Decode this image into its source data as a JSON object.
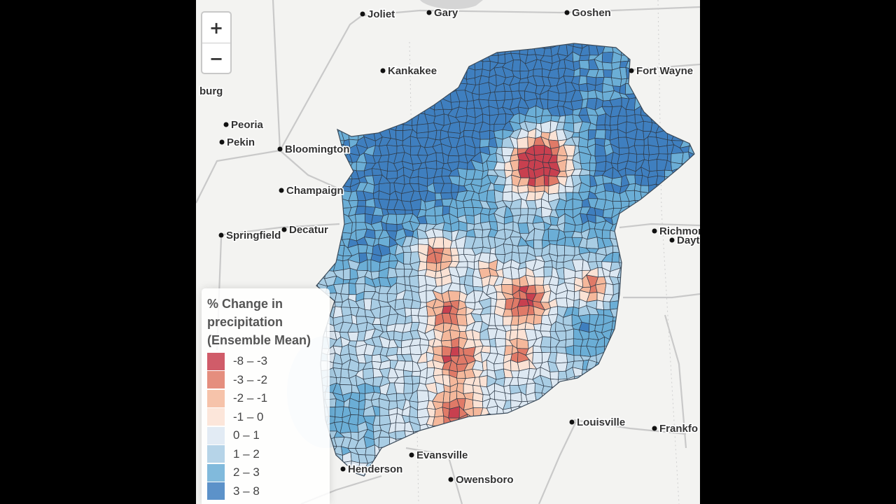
{
  "map": {
    "zoom": {
      "in_label": "+",
      "out_label": "−"
    },
    "cities": [
      {
        "name": "Joliet"
      },
      {
        "name": "Gary"
      },
      {
        "name": "Goshen"
      },
      {
        "name": "Kankakee"
      },
      {
        "name": "Fort Wayne"
      },
      {
        "name": "burg"
      },
      {
        "name": "Peoria"
      },
      {
        "name": "Pekin"
      },
      {
        "name": "Bloomington"
      },
      {
        "name": "Champaign"
      },
      {
        "name": "Decatur"
      },
      {
        "name": "Springfield"
      },
      {
        "name": "Richmon"
      },
      {
        "name": "Dayto"
      },
      {
        "name": "Louisville"
      },
      {
        "name": "Frankfo"
      },
      {
        "name": "Evansville"
      },
      {
        "name": "Henderson"
      },
      {
        "name": "Owensboro"
      }
    ]
  },
  "legend": {
    "title_lines": [
      "% Change in",
      "precipitation",
      "(Ensemble Mean)"
    ],
    "items": [
      {
        "label": "-8 – -3",
        "color": "#c8404f"
      },
      {
        "label": "-3 – -2",
        "color": "#e07a67"
      },
      {
        "label": "-2 – -1",
        "color": "#f5b89b"
      },
      {
        "label": "-1 – 0",
        "color": "#fbe2d4"
      },
      {
        "label": "0 – 1",
        "color": "#dde8f2"
      },
      {
        "label": "1 – 2",
        "color": "#a9cde4"
      },
      {
        "label": "2 – 3",
        "color": "#6baed6"
      },
      {
        "label": "3 – 8",
        "color": "#3f7fbf"
      }
    ]
  }
}
